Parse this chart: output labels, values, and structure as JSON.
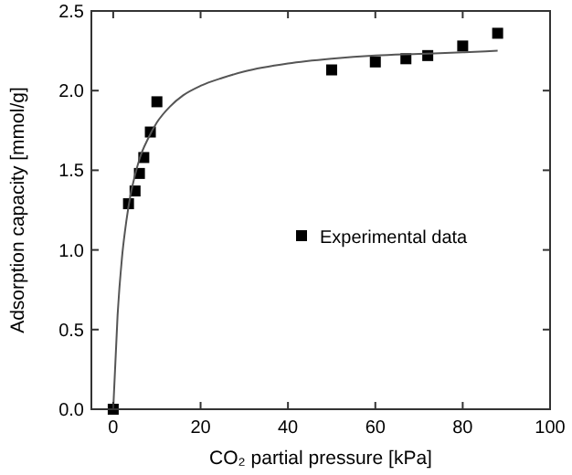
{
  "chart_data": {
    "type": "scatter",
    "xlabel": "CO₂ partial pressure [kPa]",
    "ylabel": "Adsorption capacity [mmol/g]",
    "xlim": [
      -5,
      100
    ],
    "ylim": [
      0,
      2.5
    ],
    "xticks": [
      0,
      20,
      40,
      60,
      80,
      100
    ],
    "yticks": [
      {
        "value": 0,
        "label": "0.0"
      },
      0.5,
      {
        "value": 1,
        "label": "1.0"
      },
      1.5,
      {
        "value": 2,
        "label": "2.0"
      },
      2.5
    ],
    "legend": "right",
    "marker": "square",
    "grid": false,
    "series": [
      {
        "name": "Experimental data",
        "type": "scatter",
        "color": "#000000",
        "x": [
          0,
          3.5,
          5,
          6,
          7,
          8.5,
          10,
          50,
          60,
          67,
          72,
          80,
          88
        ],
        "values": [
          0,
          1.29,
          1.37,
          1.48,
          1.58,
          1.74,
          1.93,
          2.13,
          2.18,
          2.2,
          2.22,
          2.28,
          2.36
        ]
      },
      {
        "type": "line",
        "color": "#555555",
        "marker": "none",
        "x": [
          0,
          1,
          2,
          3,
          4,
          5,
          6,
          8,
          10,
          13,
          16,
          20,
          25,
          30,
          40,
          50,
          60,
          70,
          80,
          88
        ],
        "values": [
          0,
          0.59,
          0.95,
          1.18,
          1.35,
          1.47,
          1.57,
          1.7,
          1.8,
          1.9,
          1.97,
          2.03,
          2.08,
          2.12,
          2.17,
          2.2,
          2.22,
          2.23,
          2.24,
          2.25
        ]
      }
    ]
  }
}
